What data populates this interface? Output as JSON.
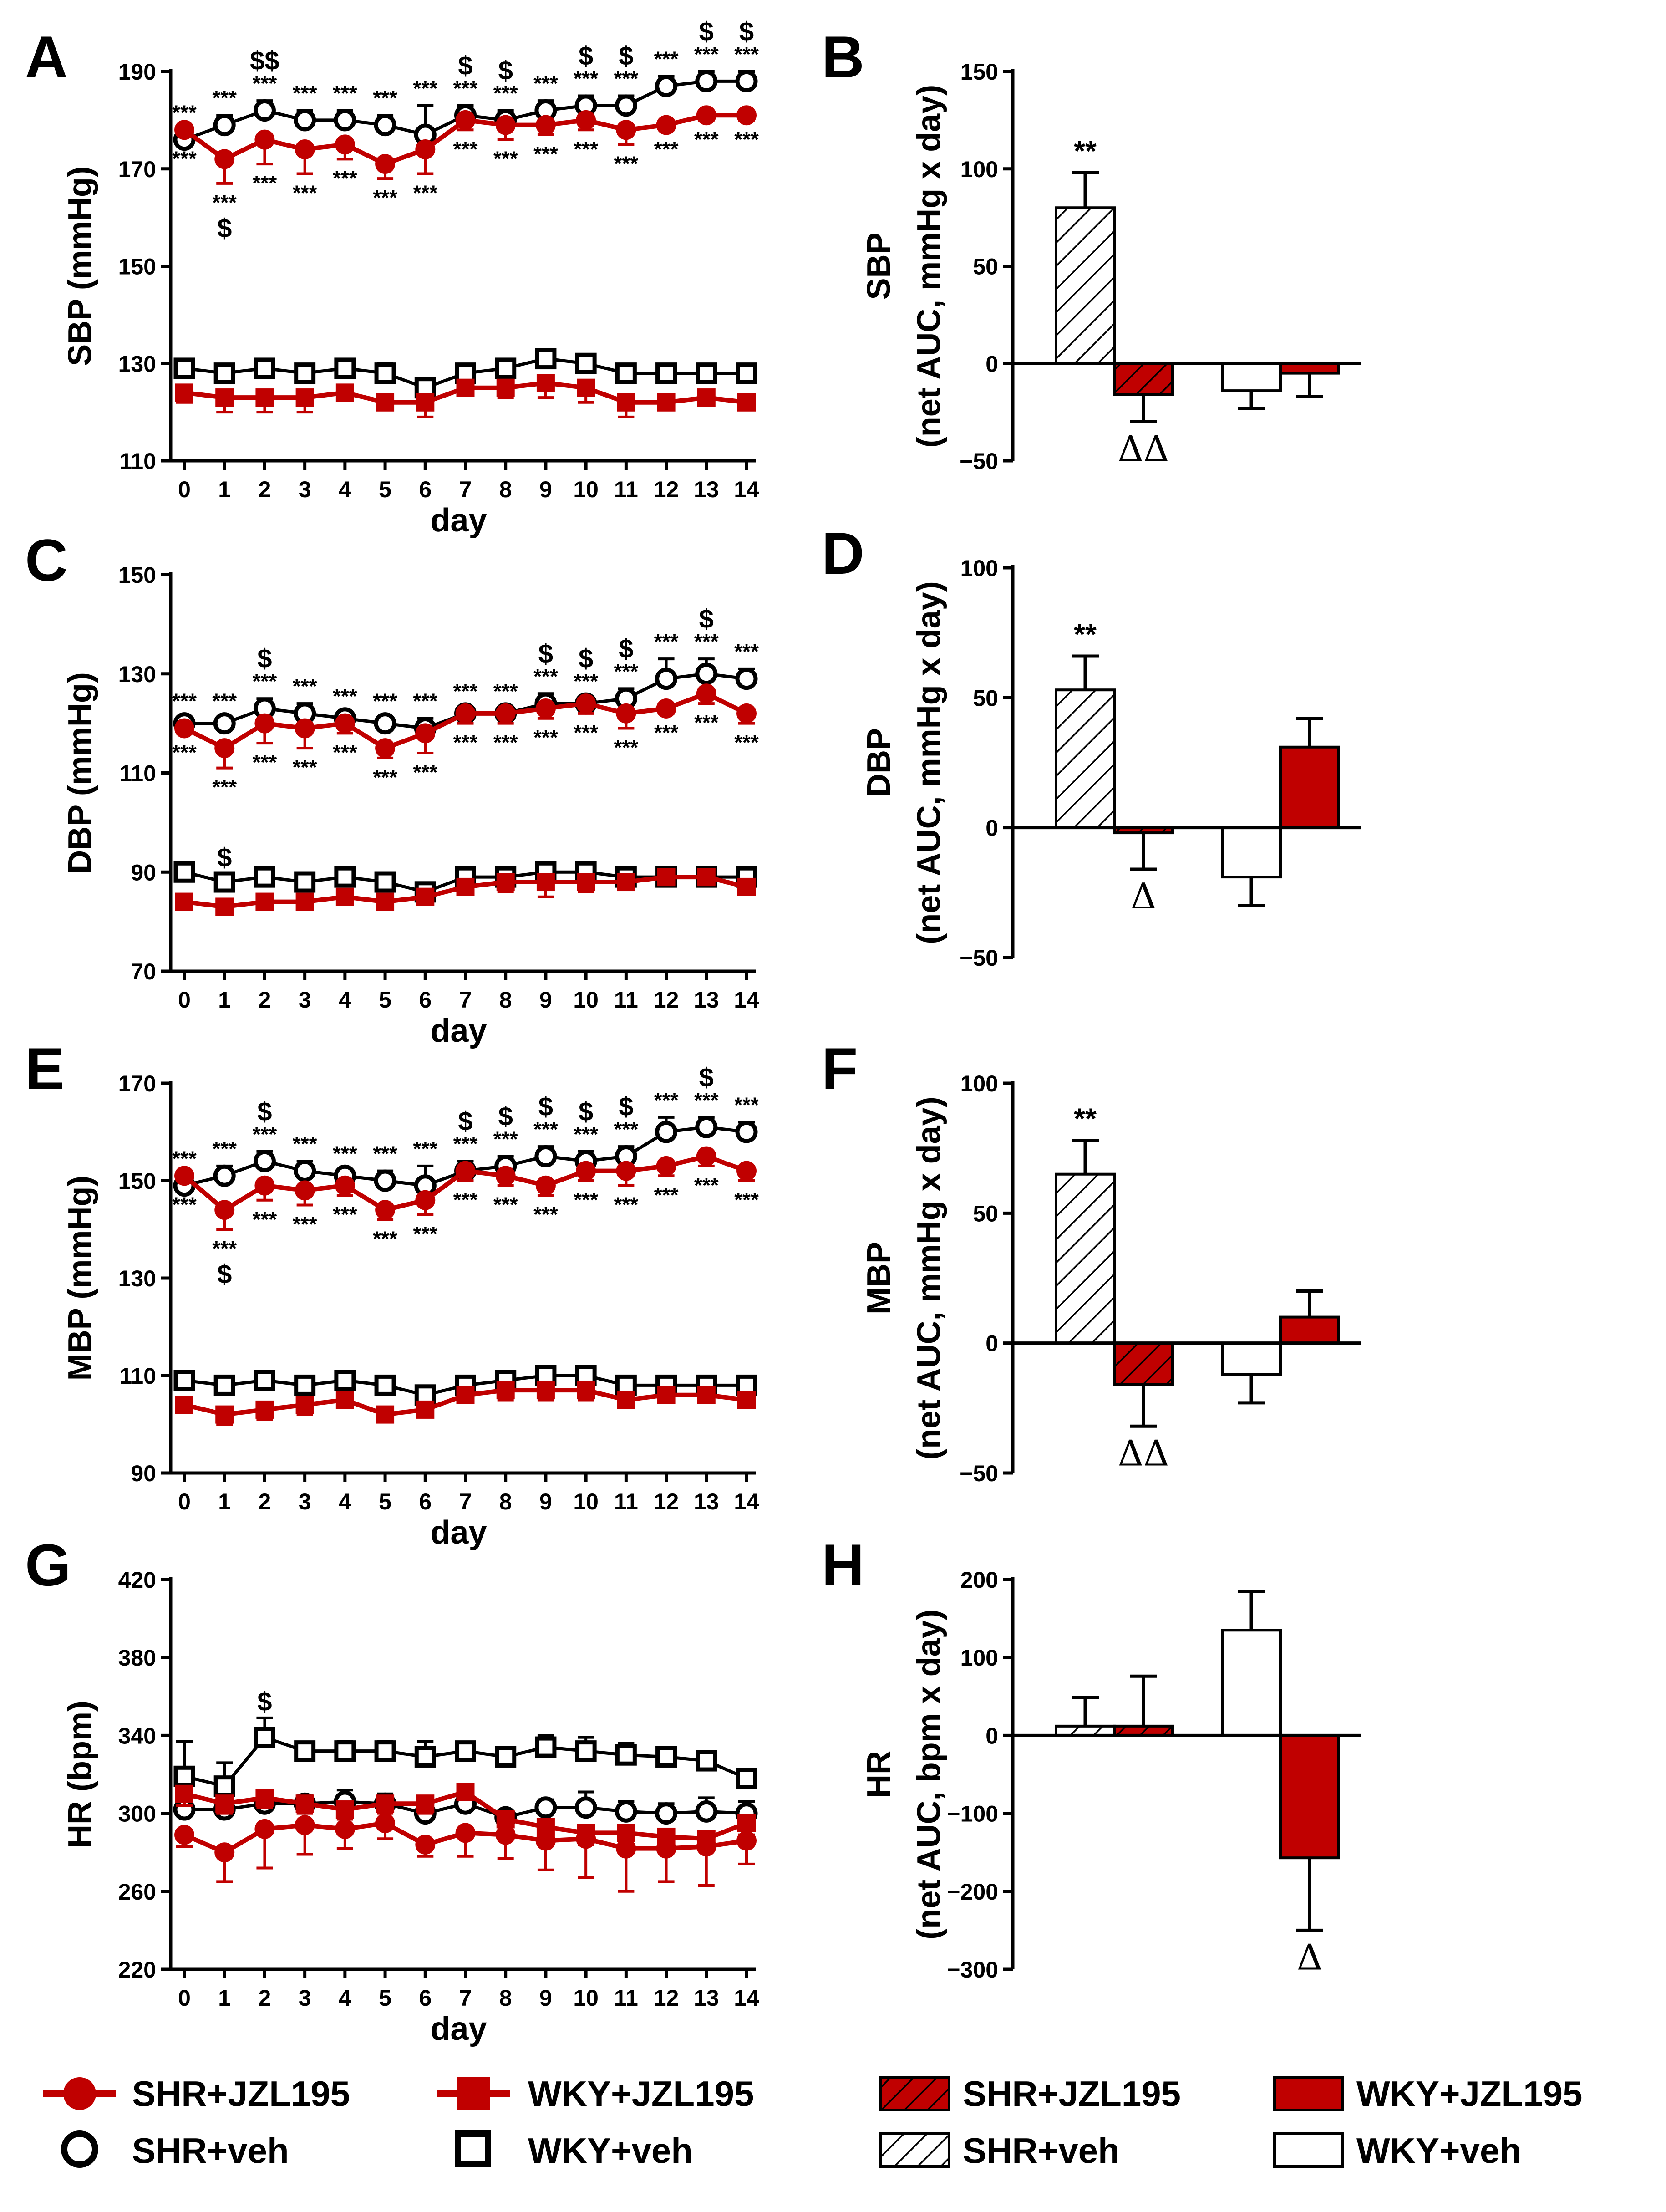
{
  "colors": {
    "red": "#c00000",
    "black": "#000000",
    "darkred": "#a00000"
  },
  "legend": {
    "shr_jzl": "SHR+JZL195",
    "wky_jzl": "WKY+JZL195",
    "shr_veh": "SHR+veh",
    "wky_veh": "WKY+veh"
  },
  "annotation_symbols": {
    "sig_three": "***",
    "sig_two": "**",
    "dollar": "$",
    "dollar_two": "$$",
    "delta": "Δ",
    "delta_two": "ΔΔ"
  },
  "chart_data": [
    {
      "id": "A",
      "type": "line",
      "letter": "A",
      "ylabel": "SBP (mmHg)",
      "xlabel": "day",
      "ylim": [
        110,
        190
      ],
      "yticks": [
        110,
        130,
        150,
        170,
        190
      ],
      "ytick_labels": [
        "110",
        "130",
        "150",
        "170",
        "190"
      ],
      "x": [
        0,
        1,
        2,
        3,
        4,
        5,
        6,
        7,
        8,
        9,
        10,
        11,
        12,
        13,
        14
      ],
      "x_labels": [
        "0",
        "1",
        "2",
        "3",
        "4",
        "5",
        "6",
        "7",
        "8",
        "9",
        "10",
        "11",
        "12",
        "13",
        "14"
      ],
      "series": [
        {
          "name": "SHR+veh",
          "values": [
            176,
            179,
            182,
            180,
            180,
            179,
            177,
            181,
            180,
            182,
            183,
            183,
            187,
            188,
            188
          ],
          "err": [
            2,
            2,
            2,
            2,
            2,
            2,
            6,
            2,
            2,
            2,
            2,
            2,
            2,
            2,
            2
          ],
          "err_dir": 1
        },
        {
          "name": "SHR+JZL195",
          "values": [
            178,
            172,
            176,
            174,
            175,
            171,
            174,
            180,
            179,
            179,
            180,
            178,
            179,
            181,
            181
          ],
          "err": [
            1,
            5,
            5,
            5,
            3,
            3,
            5,
            2,
            3,
            2,
            2,
            3,
            1,
            1,
            1
          ],
          "err_dir": -1
        },
        {
          "name": "WKY+veh",
          "values": [
            129,
            128,
            129,
            128,
            129,
            128,
            125,
            128,
            129,
            131,
            130,
            128,
            128,
            128,
            128
          ],
          "err": [
            1,
            1,
            1,
            1,
            1,
            2,
            2,
            1,
            1,
            1,
            1,
            1,
            1,
            1,
            1
          ],
          "err_dir": 1
        },
        {
          "name": "WKY+JZL195",
          "values": [
            124,
            123,
            123,
            123,
            124,
            122,
            122,
            125,
            125,
            126,
            125,
            122,
            122,
            123,
            122
          ],
          "err": [
            2,
            3,
            3,
            3,
            1,
            1,
            3,
            1,
            2,
            3,
            3,
            3,
            1,
            1,
            1
          ],
          "err_dir": -1
        }
      ],
      "sig_above": [
        0,
        1,
        2,
        3,
        4,
        5,
        6,
        7,
        8,
        9,
        10,
        11,
        12,
        13,
        14
      ],
      "sig_below": [
        0,
        1,
        2,
        3,
        4,
        5,
        6,
        7,
        8,
        9,
        10,
        11,
        12,
        13,
        14
      ],
      "dollar_above": [
        2,
        7,
        8,
        10,
        11,
        13,
        14
      ],
      "dollar_above_double": [
        2
      ],
      "dollar_below": [
        1
      ]
    },
    {
      "id": "C",
      "type": "line",
      "letter": "C",
      "ylabel": "DBP (mmHg)",
      "xlabel": "day",
      "ylim": [
        70,
        150
      ],
      "yticks": [
        70,
        90,
        110,
        130,
        150
      ],
      "ytick_labels": [
        "70",
        "90",
        "110",
        "130",
        "150"
      ],
      "x": [
        0,
        1,
        2,
        3,
        4,
        5,
        6,
        7,
        8,
        9,
        10,
        11,
        12,
        13,
        14
      ],
      "x_labels": [
        "0",
        "1",
        "2",
        "3",
        "4",
        "5",
        "6",
        "7",
        "8",
        "9",
        "10",
        "11",
        "12",
        "13",
        "14"
      ],
      "series": [
        {
          "name": "SHR+veh",
          "values": [
            120,
            120,
            123,
            122,
            121,
            120,
            119,
            122,
            122,
            124,
            124,
            125,
            129,
            130,
            129
          ],
          "err": [
            1,
            1,
            2,
            2,
            1,
            1,
            2,
            1,
            1,
            2,
            1,
            2,
            4,
            3,
            2
          ],
          "err_dir": 1
        },
        {
          "name": "SHR+JZL195",
          "values": [
            119,
            115,
            120,
            119,
            120,
            115,
            118,
            122,
            122,
            123,
            124,
            122,
            123,
            126,
            122
          ],
          "err": [
            1,
            4,
            4,
            4,
            2,
            2,
            4,
            2,
            2,
            2,
            2,
            3,
            1,
            2,
            2
          ],
          "err_dir": -1
        },
        {
          "name": "WKY+veh",
          "values": [
            90,
            88,
            89,
            88,
            89,
            88,
            86,
            89,
            89,
            90,
            90,
            89,
            89,
            89,
            89
          ],
          "err": [
            1,
            1,
            1,
            1,
            1,
            1,
            1,
            1,
            1,
            1,
            1,
            1,
            1,
            1,
            1
          ],
          "err_dir": 1
        },
        {
          "name": "WKY+JZL195",
          "values": [
            84,
            83,
            84,
            84,
            85,
            84,
            85,
            87,
            88,
            88,
            88,
            88,
            89,
            89,
            87
          ],
          "err": [
            1,
            1,
            1,
            1,
            1,
            1,
            1,
            1,
            2,
            3,
            2,
            1,
            1,
            1,
            1
          ],
          "err_dir": -1
        }
      ],
      "sig_above": [
        0,
        1,
        2,
        3,
        4,
        5,
        6,
        7,
        8,
        9,
        10,
        11,
        12,
        13,
        14
      ],
      "sig_below": [
        0,
        1,
        2,
        3,
        4,
        5,
        6,
        7,
        8,
        9,
        10,
        11,
        12,
        13,
        14
      ],
      "dollar_above": [
        2,
        9,
        10,
        11,
        13
      ],
      "dollar_above_double": [],
      "dollar_below": [],
      "dollar_wky": [
        1
      ]
    },
    {
      "id": "E",
      "type": "line",
      "letter": "E",
      "ylabel": "MBP (mmHg)",
      "xlabel": "day",
      "ylim": [
        90,
        170
      ],
      "yticks": [
        90,
        110,
        130,
        150,
        170
      ],
      "ytick_labels": [
        "90",
        "110",
        "130",
        "150",
        "170"
      ],
      "x": [
        0,
        1,
        2,
        3,
        4,
        5,
        6,
        7,
        8,
        9,
        10,
        11,
        12,
        13,
        14
      ],
      "x_labels": [
        "0",
        "1",
        "2",
        "3",
        "4",
        "5",
        "6",
        "7",
        "8",
        "9",
        "10",
        "11",
        "12",
        "13",
        "14"
      ],
      "series": [
        {
          "name": "SHR+veh",
          "values": [
            149,
            151,
            154,
            152,
            151,
            150,
            149,
            152,
            153,
            155,
            154,
            155,
            160,
            161,
            160
          ],
          "err": [
            1,
            2,
            2,
            2,
            1,
            2,
            4,
            2,
            2,
            2,
            2,
            2,
            3,
            2,
            2
          ],
          "err_dir": 1
        },
        {
          "name": "SHR+JZL195",
          "values": [
            151,
            144,
            149,
            148,
            149,
            144,
            146,
            152,
            151,
            149,
            152,
            152,
            153,
            155,
            152
          ],
          "err": [
            1,
            4,
            3,
            3,
            2,
            2,
            3,
            2,
            2,
            2,
            2,
            3,
            2,
            2,
            2
          ],
          "err_dir": -1
        },
        {
          "name": "WKY+veh",
          "values": [
            109,
            108,
            109,
            108,
            109,
            108,
            106,
            108,
            109,
            110,
            110,
            108,
            108,
            108,
            108
          ],
          "err": [
            1,
            1,
            1,
            1,
            1,
            1,
            1,
            1,
            1,
            1,
            1,
            1,
            1,
            1,
            1
          ],
          "err_dir": 1
        },
        {
          "name": "WKY+JZL195",
          "values": [
            104,
            102,
            103,
            104,
            105,
            102,
            103,
            106,
            107,
            107,
            107,
            105,
            106,
            106,
            105
          ],
          "err": [
            1,
            2,
            2,
            2,
            1,
            1,
            1,
            1,
            2,
            2,
            2,
            1,
            1,
            1,
            1
          ],
          "err_dir": -1
        }
      ],
      "sig_above": [
        0,
        1,
        2,
        3,
        4,
        5,
        6,
        7,
        8,
        9,
        10,
        11,
        12,
        13,
        14
      ],
      "sig_below": [
        0,
        1,
        2,
        3,
        4,
        5,
        6,
        7,
        8,
        9,
        10,
        11,
        12,
        13,
        14
      ],
      "dollar_above": [
        2,
        7,
        8,
        9,
        10,
        11,
        13
      ],
      "dollar_above_double": [],
      "dollar_below": [
        1
      ]
    },
    {
      "id": "G",
      "type": "line",
      "letter": "G",
      "ylabel": "HR (bpm)",
      "xlabel": "day",
      "ylim": [
        220,
        420
      ],
      "yticks": [
        220,
        260,
        300,
        340,
        380,
        420
      ],
      "ytick_labels": [
        "220",
        "260",
        "300",
        "340",
        "380",
        "420"
      ],
      "x": [
        0,
        1,
        2,
        3,
        4,
        5,
        6,
        7,
        8,
        9,
        10,
        11,
        12,
        13,
        14
      ],
      "x_labels": [
        "0",
        "1",
        "2",
        "3",
        "4",
        "5",
        "6",
        "7",
        "8",
        "9",
        "10",
        "11",
        "12",
        "13",
        "14"
      ],
      "series": [
        {
          "name": "WKY+veh",
          "values": [
            319,
            314,
            339,
            332,
            332,
            332,
            329,
            332,
            329,
            334,
            332,
            330,
            329,
            327,
            318
          ],
          "err": [
            18,
            12,
            10,
            3,
            5,
            5,
            8,
            4,
            3,
            6,
            7,
            6,
            5,
            4,
            3
          ],
          "err_dir": 1
        },
        {
          "name": "SHR+veh",
          "values": [
            302,
            302,
            305,
            305,
            306,
            305,
            300,
            305,
            298,
            303,
            303,
            301,
            300,
            301,
            300
          ],
          "err": [
            6,
            4,
            5,
            4,
            6,
            5,
            5,
            3,
            3,
            4,
            8,
            5,
            5,
            7,
            6
          ],
          "err_dir": 1
        },
        {
          "name": "WKY+JZL195",
          "values": [
            310,
            305,
            308,
            305,
            302,
            305,
            305,
            311,
            297,
            293,
            290,
            290,
            288,
            287,
            295
          ],
          "err": [
            6,
            5,
            5,
            5,
            5,
            5,
            5,
            3,
            6,
            6,
            6,
            6,
            6,
            6,
            6
          ],
          "err_dir": -1
        },
        {
          "name": "SHR+JZL195",
          "values": [
            289,
            280,
            292,
            294,
            292,
            295,
            284,
            290,
            289,
            286,
            287,
            282,
            282,
            283,
            286
          ],
          "err": [
            6,
            15,
            20,
            15,
            10,
            8,
            6,
            12,
            12,
            15,
            20,
            22,
            17,
            20,
            12
          ],
          "err_dir": -1
        }
      ],
      "sig_above": [],
      "sig_below": [],
      "dollar_above": [],
      "dollar_above_double": [],
      "dollar_below": [],
      "dollar_wky_above": [
        2
      ]
    },
    {
      "id": "B",
      "type": "bar",
      "letter": "B",
      "ylabel_line1": "SBP",
      "ylabel_line2": "(net AUC, mmHg x day)",
      "ylim": [
        -50,
        150
      ],
      "yticks": [
        -50,
        0,
        50,
        100,
        150
      ],
      "ytick_labels": [
        "−50",
        "0",
        "50",
        "100",
        "150"
      ],
      "bars": [
        {
          "name": "SHR+veh",
          "value": 80,
          "err": 18
        },
        {
          "name": "SHR+JZL195",
          "value": -16,
          "err": 14
        },
        {
          "name": "WKY+veh",
          "value": -14,
          "err": 9
        },
        {
          "name": "WKY+JZL195",
          "value": -5,
          "err": 12
        }
      ],
      "annotations": [
        {
          "bar": 0,
          "text": "**",
          "pos": "above"
        },
        {
          "bar": 1,
          "text": "ΔΔ",
          "pos": "below"
        }
      ]
    },
    {
      "id": "D",
      "type": "bar",
      "letter": "D",
      "ylabel_line1": "DBP",
      "ylabel_line2": "(net AUC, mmHg x day)",
      "ylim": [
        -50,
        100
      ],
      "yticks": [
        -50,
        0,
        50,
        100
      ],
      "ytick_labels": [
        "−50",
        "0",
        "50",
        "100"
      ],
      "bars": [
        {
          "name": "SHR+veh",
          "value": 53,
          "err": 13
        },
        {
          "name": "SHR+JZL195",
          "value": -2,
          "err": 14
        },
        {
          "name": "WKY+veh",
          "value": -19,
          "err": 11
        },
        {
          "name": "WKY+JZL195",
          "value": 31,
          "err": 11
        }
      ],
      "annotations": [
        {
          "bar": 0,
          "text": "**",
          "pos": "above"
        },
        {
          "bar": 1,
          "text": "Δ",
          "pos": "below"
        }
      ]
    },
    {
      "id": "F",
      "type": "bar",
      "letter": "F",
      "ylabel_line1": "MBP",
      "ylabel_line2": "(net AUC, mmHg x day)",
      "ylim": [
        -50,
        100
      ],
      "yticks": [
        -50,
        0,
        50,
        100
      ],
      "ytick_labels": [
        "−50",
        "0",
        "50",
        "100"
      ],
      "bars": [
        {
          "name": "SHR+veh",
          "value": 65,
          "err": 13
        },
        {
          "name": "SHR+JZL195",
          "value": -16,
          "err": 16
        },
        {
          "name": "WKY+veh",
          "value": -12,
          "err": 11
        },
        {
          "name": "WKY+JZL195",
          "value": 10,
          "err": 10
        }
      ],
      "annotations": [
        {
          "bar": 0,
          "text": "**",
          "pos": "above"
        },
        {
          "bar": 1,
          "text": "ΔΔ",
          "pos": "below"
        }
      ]
    },
    {
      "id": "H",
      "type": "bar",
      "letter": "H",
      "ylabel_line1": "HR",
      "ylabel_line2": "(net AUC, bpm x day)",
      "ylim": [
        -300,
        200
      ],
      "yticks": [
        -300,
        -200,
        -100,
        0,
        100,
        200
      ],
      "ytick_labels": [
        "−300",
        "−200",
        "−100",
        "0",
        "100",
        "200"
      ],
      "bars": [
        {
          "name": "SHR+veh",
          "value": 12,
          "err": 37
        },
        {
          "name": "SHR+JZL195",
          "value": 12,
          "err": 64
        },
        {
          "name": "WKY+veh",
          "value": 135,
          "err": 50
        },
        {
          "name": "WKY+JZL195",
          "value": -157,
          "err": 93
        }
      ],
      "annotations": [
        {
          "bar": 3,
          "text": "Δ",
          "pos": "below"
        }
      ]
    }
  ]
}
